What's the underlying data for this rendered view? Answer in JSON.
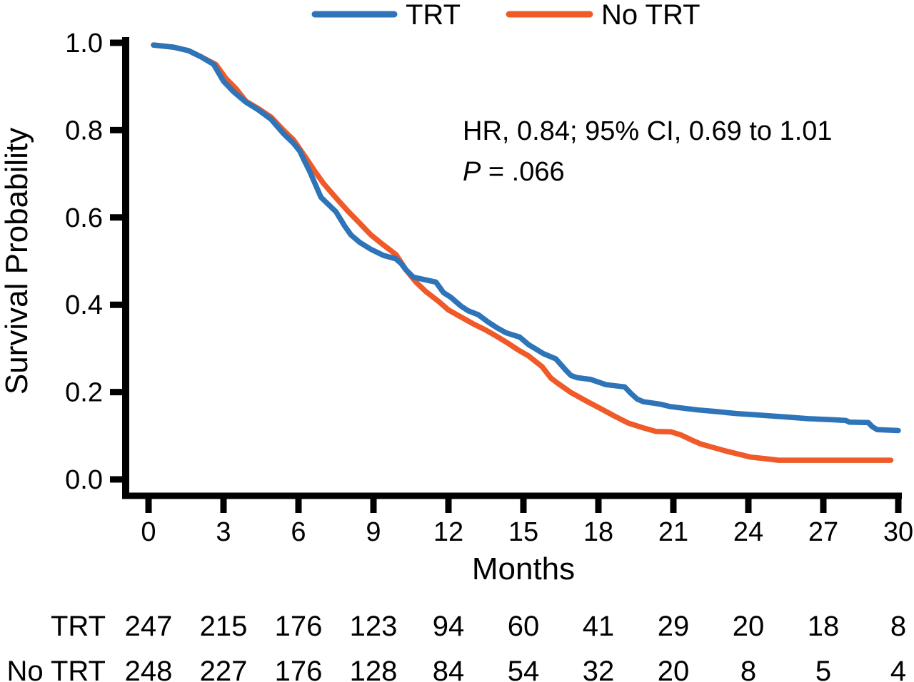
{
  "figure": {
    "background": "#ffffff",
    "axis_color": "#000000",
    "text_color": "#000000"
  },
  "chart_data": {
    "type": "line",
    "subtype": "kaplan-meier-survival",
    "title": "",
    "xlabel": "Months",
    "ylabel": "Survival Probability",
    "xlim": [
      0,
      30
    ],
    "ylim": [
      0.0,
      1.0
    ],
    "grid": false,
    "legend_position": "top-center",
    "x_ticks": [
      {
        "value": 0,
        "label": "0"
      },
      {
        "value": 3,
        "label": "3"
      },
      {
        "value": 6,
        "label": "6"
      },
      {
        "value": 9,
        "label": "9"
      },
      {
        "value": 12,
        "label": "12"
      },
      {
        "value": 15,
        "label": "15"
      },
      {
        "value": 18,
        "label": "18"
      },
      {
        "value": 21,
        "label": "21"
      },
      {
        "value": 24,
        "label": "24"
      },
      {
        "value": 27,
        "label": "27"
      },
      {
        "value": 30,
        "label": "30"
      }
    ],
    "y_ticks": [
      {
        "value": 1.0,
        "label": "1.0"
      },
      {
        "value": 0.8,
        "label": "0.8"
      },
      {
        "value": 0.6,
        "label": "0.6"
      },
      {
        "value": 0.4,
        "label": "0.4"
      },
      {
        "value": 0.2,
        "label": "0.2"
      },
      {
        "value": 0.0,
        "label": "0.0"
      }
    ],
    "annotation": {
      "line1": "HR, 0.84; 95% CI, 0.69 to 1.01",
      "p_label": "P",
      "p_value": " = .066"
    },
    "series": [
      {
        "id": "no-trt",
        "name": "No TRT",
        "color": "#ef5a28",
        "points": [
          [
            0.2,
            0.995
          ],
          [
            1.0,
            0.99
          ],
          [
            1.6,
            0.982
          ],
          [
            2.1,
            0.968
          ],
          [
            2.7,
            0.95
          ],
          [
            3.1,
            0.918
          ],
          [
            3.5,
            0.895
          ],
          [
            3.9,
            0.866
          ],
          [
            4.4,
            0.849
          ],
          [
            4.9,
            0.83
          ],
          [
            5.4,
            0.8
          ],
          [
            5.8,
            0.778
          ],
          [
            6.05,
            0.757
          ],
          [
            6.35,
            0.732
          ],
          [
            6.65,
            0.706
          ],
          [
            7.0,
            0.678
          ],
          [
            7.5,
            0.645
          ],
          [
            8.0,
            0.613
          ],
          [
            8.45,
            0.587
          ],
          [
            8.9,
            0.56
          ],
          [
            9.4,
            0.537
          ],
          [
            9.9,
            0.515
          ],
          [
            10.3,
            0.48
          ],
          [
            10.7,
            0.452
          ],
          [
            11.1,
            0.43
          ],
          [
            11.6,
            0.408
          ],
          [
            12.0,
            0.388
          ],
          [
            12.5,
            0.372
          ],
          [
            13.0,
            0.356
          ],
          [
            13.5,
            0.342
          ],
          [
            13.95,
            0.327
          ],
          [
            14.35,
            0.313
          ],
          [
            14.8,
            0.296
          ],
          [
            15.2,
            0.283
          ],
          [
            15.75,
            0.258
          ],
          [
            16.1,
            0.232
          ],
          [
            16.35,
            0.221
          ],
          [
            16.9,
            0.199
          ],
          [
            17.5,
            0.18
          ],
          [
            18.1,
            0.162
          ],
          [
            18.65,
            0.145
          ],
          [
            19.2,
            0.129
          ],
          [
            19.8,
            0.118
          ],
          [
            20.3,
            0.11
          ],
          [
            20.9,
            0.109
          ],
          [
            21.3,
            0.102
          ],
          [
            21.7,
            0.091
          ],
          [
            22.1,
            0.081
          ],
          [
            22.6,
            0.073
          ],
          [
            23.1,
            0.065
          ],
          [
            23.6,
            0.058
          ],
          [
            24.1,
            0.051
          ],
          [
            24.6,
            0.048
          ],
          [
            25.2,
            0.044
          ],
          [
            26.0,
            0.044
          ],
          [
            27.0,
            0.044
          ],
          [
            28.0,
            0.044
          ],
          [
            29.0,
            0.044
          ],
          [
            29.7,
            0.044
          ]
        ]
      },
      {
        "id": "trt",
        "name": "TRT",
        "color": "#2d74b8",
        "points": [
          [
            0.2,
            0.995
          ],
          [
            1.0,
            0.99
          ],
          [
            1.6,
            0.982
          ],
          [
            2.1,
            0.968
          ],
          [
            2.6,
            0.951
          ],
          [
            3.0,
            0.912
          ],
          [
            3.4,
            0.888
          ],
          [
            3.9,
            0.864
          ],
          [
            4.4,
            0.846
          ],
          [
            4.9,
            0.825
          ],
          [
            5.4,
            0.792
          ],
          [
            5.8,
            0.77
          ],
          [
            6.05,
            0.752
          ],
          [
            6.2,
            0.734
          ],
          [
            6.45,
            0.705
          ],
          [
            6.9,
            0.646
          ],
          [
            7.5,
            0.613
          ],
          [
            7.85,
            0.58
          ],
          [
            8.1,
            0.56
          ],
          [
            8.45,
            0.543
          ],
          [
            8.9,
            0.527
          ],
          [
            9.4,
            0.513
          ],
          [
            9.9,
            0.505
          ],
          [
            10.1,
            0.495
          ],
          [
            10.3,
            0.48
          ],
          [
            10.6,
            0.463
          ],
          [
            11.5,
            0.452
          ],
          [
            11.8,
            0.428
          ],
          [
            12.1,
            0.417
          ],
          [
            12.5,
            0.397
          ],
          [
            12.8,
            0.386
          ],
          [
            13.2,
            0.377
          ],
          [
            13.6,
            0.36
          ],
          [
            13.95,
            0.347
          ],
          [
            14.3,
            0.336
          ],
          [
            14.85,
            0.326
          ],
          [
            15.2,
            0.309
          ],
          [
            15.8,
            0.288
          ],
          [
            16.3,
            0.276
          ],
          [
            16.7,
            0.25
          ],
          [
            16.9,
            0.238
          ],
          [
            17.15,
            0.233
          ],
          [
            17.7,
            0.229
          ],
          [
            18.3,
            0.217
          ],
          [
            19.05,
            0.212
          ],
          [
            19.3,
            0.197
          ],
          [
            19.55,
            0.184
          ],
          [
            19.8,
            0.178
          ],
          [
            20.5,
            0.172
          ],
          [
            20.85,
            0.167
          ],
          [
            21.4,
            0.163
          ],
          [
            22.0,
            0.159
          ],
          [
            22.6,
            0.156
          ],
          [
            23.5,
            0.151
          ],
          [
            24.5,
            0.147
          ],
          [
            25.5,
            0.143
          ],
          [
            26.4,
            0.139
          ],
          [
            27.3,
            0.137
          ],
          [
            27.9,
            0.135
          ],
          [
            28.05,
            0.131
          ],
          [
            28.8,
            0.13
          ],
          [
            28.95,
            0.121
          ],
          [
            29.15,
            0.114
          ],
          [
            29.5,
            0.113
          ],
          [
            30.0,
            0.112
          ]
        ]
      }
    ],
    "risk_table": {
      "columns_months": [
        0,
        3,
        6,
        9,
        12,
        15,
        18,
        21,
        24,
        27,
        30
      ],
      "rows": [
        {
          "label": "TRT",
          "counts": [
            247,
            215,
            176,
            123,
            94,
            60,
            41,
            29,
            20,
            18,
            8
          ]
        },
        {
          "label": "No TRT",
          "counts": [
            248,
            227,
            176,
            128,
            84,
            54,
            32,
            20,
            8,
            5,
            4
          ]
        }
      ]
    }
  }
}
